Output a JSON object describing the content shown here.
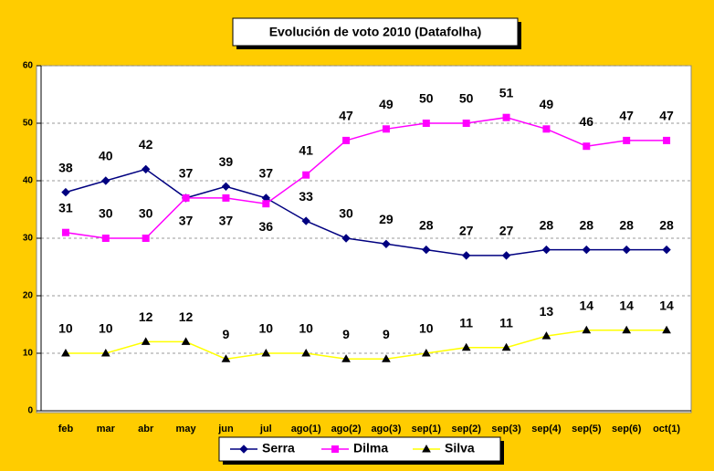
{
  "chart_data": {
    "type": "line",
    "title": "Evolución de voto 2010 (Datafolha)",
    "categories": [
      "feb",
      "mar",
      "abr",
      "may",
      "jun",
      "jul",
      "ago(1)",
      "ago(2)",
      "ago(3)",
      "sep(1)",
      "sep(2)",
      "sep(3)",
      "sep(4)",
      "sep(5)",
      "sep(6)",
      "oct(1)"
    ],
    "series": [
      {
        "name": "Serra",
        "color": "#000080",
        "values": [
          38,
          40,
          42,
          37,
          39,
          37,
          33,
          30,
          29,
          28,
          27,
          27,
          28,
          28,
          28,
          28
        ]
      },
      {
        "name": "Dilma",
        "color": "#FF00FF",
        "values": [
          31,
          30,
          30,
          37,
          37,
          36,
          41,
          47,
          49,
          50,
          50,
          51,
          49,
          46,
          47,
          47
        ]
      },
      {
        "name": "Silva",
        "color": "#FFFF00",
        "values": [
          10,
          10,
          12,
          12,
          9,
          10,
          10,
          9,
          9,
          10,
          11,
          11,
          13,
          14,
          14,
          14
        ]
      }
    ],
    "ylim": [
      0,
      60
    ],
    "yticks": [
      0,
      10,
      20,
      30,
      40,
      50,
      60
    ],
    "grid": true,
    "legend": "bottom"
  }
}
